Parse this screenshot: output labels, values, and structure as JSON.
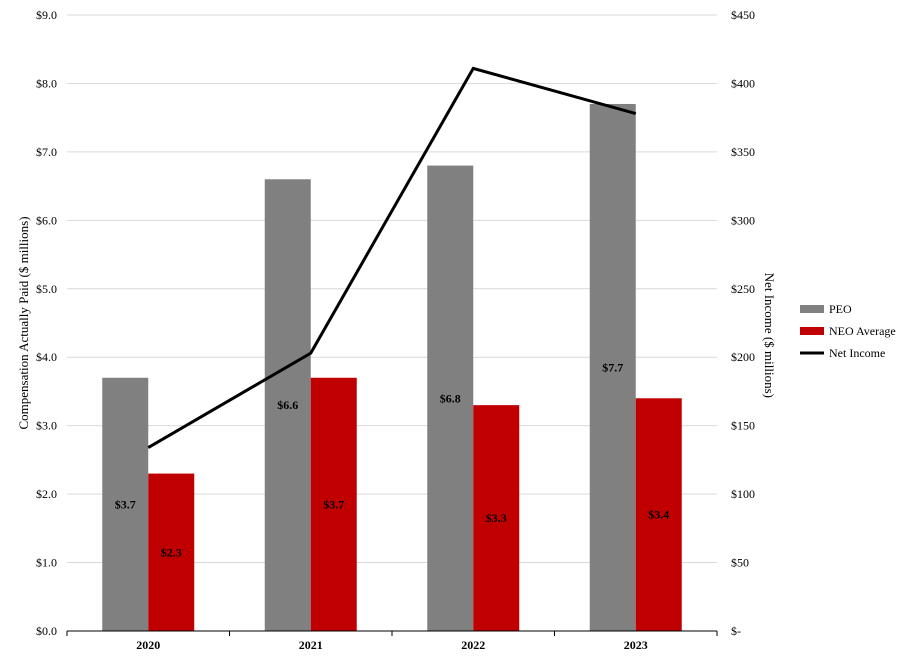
{
  "chart_data": {
    "type": "bar",
    "categories": [
      "2020",
      "2021",
      "2022",
      "2023"
    ],
    "series": [
      {
        "name": "PEO",
        "values": [
          3.7,
          6.6,
          6.8,
          7.7
        ],
        "labels": [
          "$3.7",
          "$6.6",
          "$6.8",
          "$7.7"
        ],
        "color": "#808080",
        "axis": "left"
      },
      {
        "name": "NEO Average",
        "values": [
          2.3,
          3.7,
          3.3,
          3.4
        ],
        "labels": [
          "$2.3",
          "$3.7",
          "$3.3",
          "$3.4"
        ],
        "color": "#c00000",
        "axis": "left"
      }
    ],
    "line_series": {
      "name": "Net Income",
      "values": [
        134,
        203,
        411,
        378
      ],
      "color": "#000000",
      "axis": "right"
    },
    "left_axis": {
      "label": "Compensation Actually Paid ($ millions)",
      "ylim": [
        0,
        9
      ],
      "ticks": [
        0,
        1,
        2,
        3,
        4,
        5,
        6,
        7,
        8,
        9
      ],
      "tick_labels": [
        "$0.0",
        "$1.0",
        "$2.0",
        "$3.0",
        "$4.0",
        "$5.0",
        "$6.0",
        "$7.0",
        "$8.0",
        "$9.0"
      ]
    },
    "right_axis": {
      "label": "Net Income  ($ millions)",
      "ylim": [
        0,
        450
      ],
      "ticks": [
        0,
        50,
        100,
        150,
        200,
        250,
        300,
        350,
        400,
        450
      ],
      "tick_labels": [
        "$-",
        "$50",
        "$100",
        "$150",
        "$200",
        "$250",
        "$300",
        "$350",
        "$400",
        "$450"
      ]
    },
    "grid": true,
    "legend_position": "right",
    "legend": [
      "PEO",
      "NEO Average",
      "Net Income"
    ]
  }
}
